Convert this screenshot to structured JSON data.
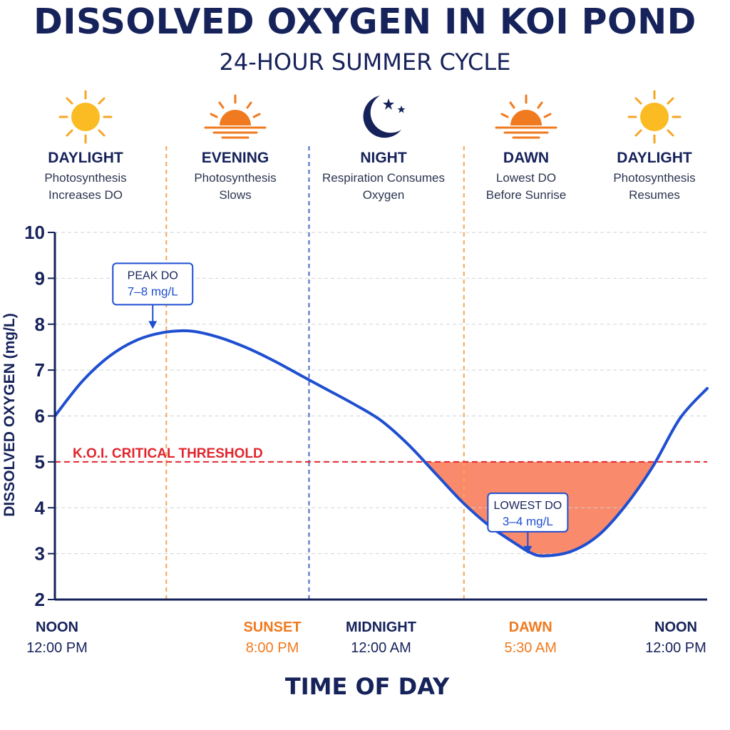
{
  "title": "DISSOLVED OXYGEN IN KOI POND",
  "subtitle": "24-HOUR SUMMER CYCLE",
  "phases": [
    {
      "name": "DAYLIGHT",
      "desc": "Photosynthesis\nIncreases DO",
      "icon": "sun-icon"
    },
    {
      "name": "EVENING",
      "desc": "Photosynthesis\nSlows",
      "icon": "sunset-icon"
    },
    {
      "name": "NIGHT",
      "desc": "Respiration Consumes\nOxygen",
      "icon": "moon-stars-icon"
    },
    {
      "name": "DAWN",
      "desc": "Lowest DO\nBefore Sunrise",
      "icon": "sunrise-icon"
    },
    {
      "name": "DAYLIGHT",
      "desc": "Photosynthesis\nResumes",
      "icon": "sun-icon"
    }
  ],
  "chart_data": {
    "type": "line",
    "ylabel": "DISSOLVED OXYGEN (mg/L)",
    "xlabel": "TIME OF DAY",
    "ylim": [
      2,
      10
    ],
    "yticks": [
      2,
      3,
      4,
      5,
      6,
      7,
      8,
      9,
      10
    ],
    "xlim_hours": [
      0,
      24
    ],
    "x_ticks": [
      {
        "name": "NOON",
        "time": "12:00 PM",
        "hour": 0,
        "color": "#16225a"
      },
      {
        "name": "SUNSET",
        "time": "8:00 PM",
        "hour": 8,
        "color": "#f07a1f"
      },
      {
        "name": "MIDNIGHT",
        "time": "12:00 AM",
        "hour": 12,
        "color": "#16225a"
      },
      {
        "name": "DAWN",
        "time": "5:30 AM",
        "hour": 17.5,
        "color": "#f07a1f"
      },
      {
        "name": "NOON",
        "time": "12:00 PM",
        "hour": 24,
        "color": "#16225a"
      }
    ],
    "grid": true,
    "series": [
      {
        "color": "#1f4fd1",
        "x": [
          0,
          1,
          2,
          3,
          4,
          5,
          6,
          7,
          8,
          9,
          10,
          11,
          12,
          13,
          14,
          15,
          16,
          17,
          17.5,
          18,
          19,
          20,
          21,
          22,
          23,
          24
        ],
        "y": [
          6.0,
          6.75,
          7.3,
          7.65,
          7.82,
          7.85,
          7.72,
          7.5,
          7.22,
          6.9,
          6.58,
          6.26,
          5.9,
          5.38,
          4.75,
          4.12,
          3.6,
          3.2,
          3.02,
          2.95,
          3.05,
          3.4,
          4.05,
          4.9,
          5.95,
          6.6
        ]
      }
    ],
    "threshold": {
      "value": 5,
      "label": "K.O.I. CRITICAL THRESHOLD",
      "color": "#e0262e"
    },
    "annotations": [
      {
        "line1": "PEAK DO",
        "line2": "7–8 mg/L",
        "hour": 3.6,
        "value": 7.85
      },
      {
        "line1": "LOWEST DO",
        "line2": "3–4 mg/L",
        "hour": 17.4,
        "value": 2.95
      }
    ],
    "phase_dividers": [
      {
        "hour": 4.1,
        "color": "#f5a55a"
      },
      {
        "hour": 9.35,
        "color": "#4a68c9"
      },
      {
        "hour": 15.05,
        "color": "#f5a55a"
      }
    ],
    "fill_color": "#f98a6c"
  }
}
